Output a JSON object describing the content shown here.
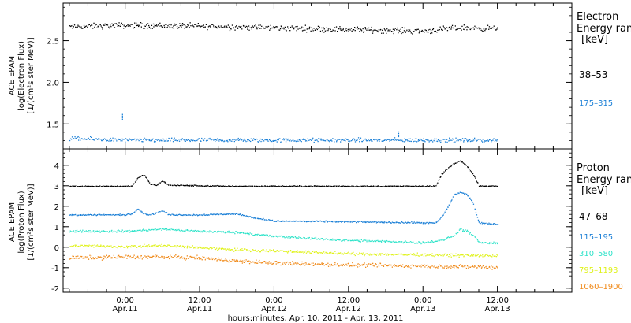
{
  "colors": {
    "background": "#ffffff",
    "axis": "#000000",
    "black": "#000000",
    "blue": "#1a7fd6",
    "cyan": "#2fe3c9",
    "yellow": "#dff21a",
    "orange": "#f08a1a"
  },
  "chart_data": [
    {
      "type": "scatter",
      "panel": "electron",
      "ylabel_lines": [
        "ACE EPAM",
        "log(Electron Flux)",
        "[1/(cm²s ster MeV)]"
      ],
      "ylim": [
        1.2,
        2.95
      ],
      "yticks": [
        {
          "value": 2.5,
          "label": "2.5"
        },
        {
          "value": 2.0,
          "label": "2.0"
        },
        {
          "value": 1.5,
          "label": "1.5"
        }
      ],
      "legend_title": [
        "Electron",
        "Energy ran",
        "[keV]"
      ],
      "series": [
        {
          "name": "38–53",
          "color": "#000000",
          "x_hours": [
            -9,
            0,
            12,
            24,
            36,
            48,
            54,
            60
          ],
          "y": [
            2.67,
            2.69,
            2.68,
            2.66,
            2.64,
            2.62,
            2.66,
            2.65
          ],
          "scatter_amplitude": 0.05
        },
        {
          "name": "175–315",
          "color": "#1a7fd6",
          "x_hours": [
            -9,
            0,
            12,
            24,
            36,
            48,
            60
          ],
          "y": [
            1.33,
            1.31,
            1.31,
            1.31,
            1.31,
            1.31,
            1.31
          ],
          "scatter_amplitude": 0.035,
          "spikes": [
            [
              -0.5,
              1.62
            ],
            [
              44,
              1.41
            ]
          ]
        }
      ]
    },
    {
      "type": "scatter",
      "panel": "proton",
      "ylabel_lines": [
        "ACE EPAM",
        "log(Proton Flux)",
        "[1/(cm²s ster MeV)]"
      ],
      "ylim": [
        -2.2,
        4.8
      ],
      "yticks": [
        {
          "value": 4,
          "label": "4"
        },
        {
          "value": 3,
          "label": "3"
        },
        {
          "value": 2,
          "label": "2"
        },
        {
          "value": 1,
          "label": "1"
        },
        {
          "value": 0,
          "label": "0"
        },
        {
          "value": -1,
          "label": "-1"
        },
        {
          "value": -2,
          "label": "-2"
        }
      ],
      "legend_title": [
        "Proton",
        "Energy ran",
        "[keV]"
      ],
      "series": [
        {
          "name": "47–68",
          "color": "#000000",
          "x_hours": [
            -9,
            1,
            2,
            3,
            4,
            5,
            6,
            7,
            16,
            30,
            50,
            51,
            52,
            53,
            54,
            55,
            56,
            57,
            60
          ],
          "y": [
            3.0,
            3.0,
            3.4,
            3.55,
            3.1,
            3.05,
            3.25,
            3.05,
            3.0,
            3.0,
            3.0,
            3.6,
            3.9,
            4.1,
            4.25,
            4.0,
            3.6,
            3.0,
            3.0
          ],
          "scatter_amplitude": 0.04
        },
        {
          "name": "115–195",
          "color": "#1a7fd6",
          "x_hours": [
            -9,
            0,
            1,
            2,
            3,
            4,
            5,
            6,
            7,
            12,
            18,
            20,
            24,
            40,
            50,
            51,
            52,
            53,
            54,
            55,
            56,
            57,
            60
          ],
          "y": [
            1.6,
            1.6,
            1.65,
            1.9,
            1.65,
            1.6,
            1.7,
            1.8,
            1.6,
            1.6,
            1.65,
            1.5,
            1.3,
            1.25,
            1.2,
            1.5,
            2.0,
            2.6,
            2.7,
            2.6,
            2.2,
            1.2,
            1.15
          ],
          "scatter_amplitude": 0.05
        },
        {
          "name": "310–580",
          "color": "#2fe3c9",
          "x_hours": [
            -9,
            0,
            6,
            12,
            18,
            24,
            36,
            48,
            51,
            53,
            54,
            55,
            56,
            57,
            60
          ],
          "y": [
            0.8,
            0.8,
            0.9,
            0.8,
            0.75,
            0.55,
            0.35,
            0.25,
            0.35,
            0.6,
            0.9,
            0.8,
            0.6,
            0.25,
            0.2
          ],
          "scatter_amplitude": 0.08
        },
        {
          "name": "795–1193",
          "color": "#dff21a",
          "x_hours": [
            -9,
            0,
            6,
            12,
            18,
            24,
            36,
            48,
            60
          ],
          "y": [
            0.1,
            0.05,
            0.1,
            0.0,
            -0.1,
            -0.15,
            -0.3,
            -0.35,
            -0.4
          ],
          "scatter_amplitude": 0.1
        },
        {
          "name": "1060–1900",
          "color": "#f08a1a",
          "x_hours": [
            -9,
            0,
            6,
            12,
            18,
            24,
            36,
            48,
            60
          ],
          "y": [
            -0.5,
            -0.45,
            -0.45,
            -0.5,
            -0.65,
            -0.75,
            -0.85,
            -0.9,
            -0.95
          ],
          "scatter_amplitude": 0.14
        }
      ]
    }
  ],
  "x_axis": {
    "xlim": [
      -10,
      72
    ],
    "ticks": [
      {
        "hour": 0,
        "time": "0:00",
        "date": "Apr.11"
      },
      {
        "hour": 12,
        "time": "12:00",
        "date": "Apr.11"
      },
      {
        "hour": 24,
        "time": "0:00",
        "date": "Apr.12"
      },
      {
        "hour": 36,
        "time": "12:00",
        "date": "Apr.12"
      },
      {
        "hour": 48,
        "time": "0:00",
        "date": "Apr.13"
      },
      {
        "hour": 60,
        "time": "12:00",
        "date": "Apr.13"
      }
    ],
    "xlabel": "hours:minutes, Apr. 10, 2011 - Apr. 13, 2011"
  }
}
